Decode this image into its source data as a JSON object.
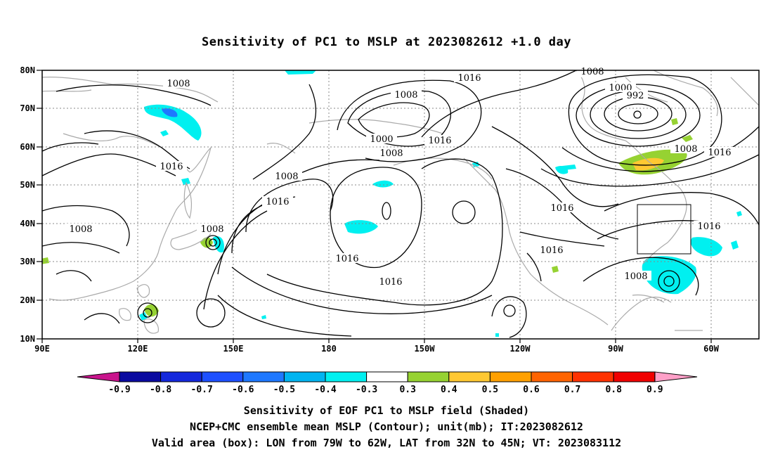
{
  "title": "Sensitivity of PC1 to MSLP at 2023082612 +1.0 day",
  "lat_labels": [
    "80N",
    "70N",
    "60N",
    "50N",
    "40N",
    "30N",
    "20N",
    "10N"
  ],
  "lon_labels": [
    "90E",
    "120E",
    "150E",
    "180",
    "150W",
    "120W",
    "90W",
    "60W"
  ],
  "contour_labels": [
    "1008",
    "1008",
    "1008",
    "1008",
    "1016",
    "1016",
    "1016",
    "1016",
    "1016",
    "1016",
    "1016",
    "1008",
    "1000",
    "1000",
    "992",
    "1008",
    "1016",
    "1008",
    "1016",
    "1008",
    "1016",
    "1008"
  ],
  "valid_box": {
    "lon_from": "79W",
    "lon_to": "62W",
    "lat_from": "32N",
    "lat_to": "45N"
  },
  "colorbar": {
    "labels": [
      "-0.9",
      "-0.8",
      "-0.7",
      "-0.6",
      "-0.5",
      "-0.4",
      "-0.3",
      "0.3",
      "0.4",
      "0.5",
      "0.6",
      "0.7",
      "0.8",
      "0.9"
    ],
    "colors": [
      "#0a0aa0",
      "#1428dc",
      "#1e50ff",
      "#1e78ff",
      "#00b4f0",
      "#00f0f0",
      "#ffffff",
      "#96d232",
      "#ffc832",
      "#ffa000",
      "#ff6400",
      "#ff3200",
      "#f00000"
    ],
    "low_arrow_color": "#c8148c",
    "high_arrow_color": "#ffa0c8"
  },
  "captions": [
    "Sensitivity of EOF PC1 to MSLP field (Shaded)",
    "NCEP+CMC ensemble mean MSLP (Contour); unit(mb); IT:2023082612",
    "Valid area (box): LON from 79W to 62W, LAT from 32N to 45N; VT: 2023083112"
  ]
}
